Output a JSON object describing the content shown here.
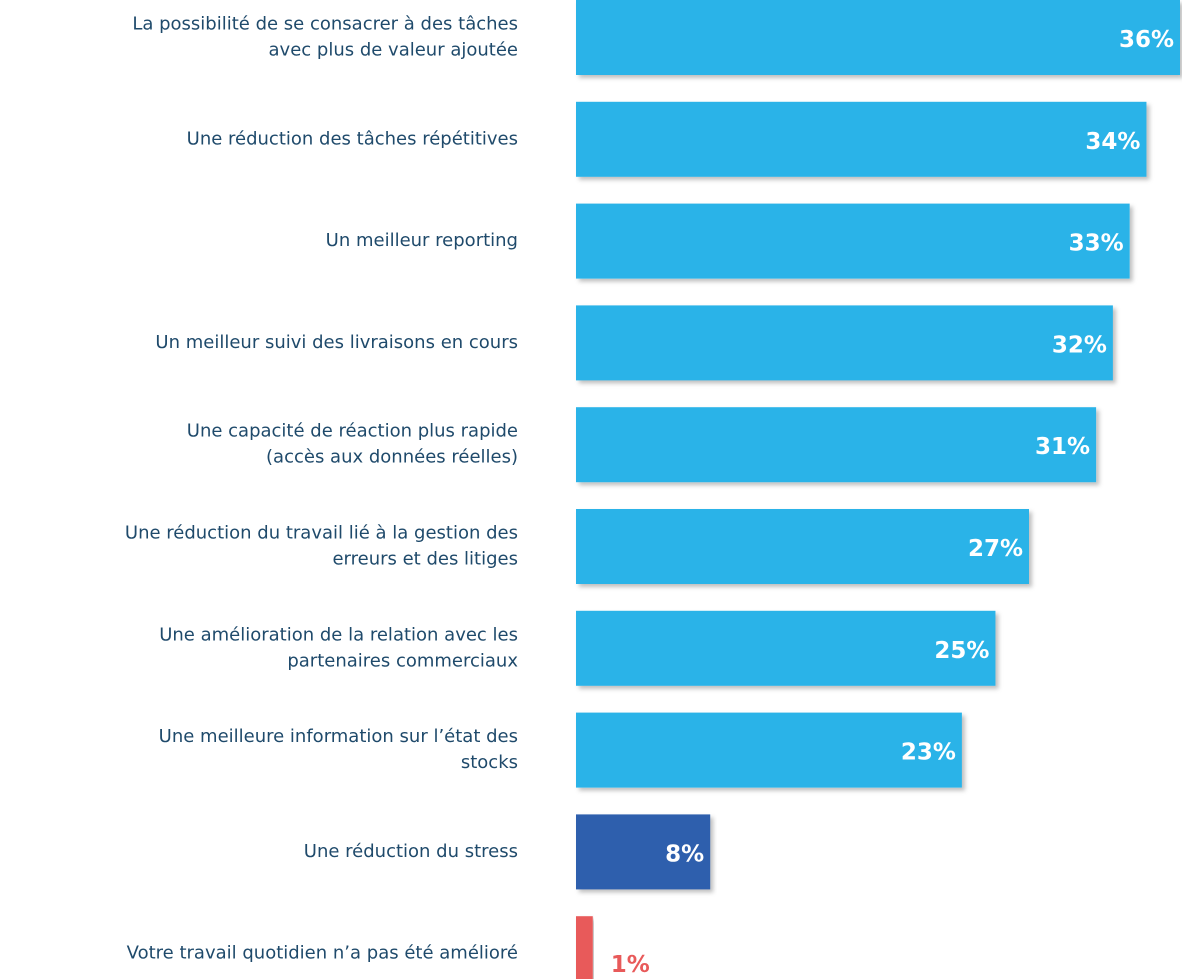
{
  "chart_data": {
    "type": "bar",
    "orientation": "horizontal",
    "categories": [
      [
        "La possibilité de se consacrer à des tâches",
        "avec plus de valeur ajoutée"
      ],
      [
        "Une réduction des tâches répétitives"
      ],
      [
        "Un meilleur reporting"
      ],
      [
        "Un meilleur suivi des livraisons en cours"
      ],
      [
        "Une capacité de réaction plus rapide",
        "(accès aux données réelles)"
      ],
      [
        "Une réduction du travail lié à la gestion des",
        "erreurs et des litiges"
      ],
      [
        "Une amélioration de la relation avec les",
        "partenaires commerciaux"
      ],
      [
        "Une meilleure information sur l’état des",
        "stocks"
      ],
      [
        "Une réduction du stress"
      ],
      [
        "Votre travail quotidien n’a pas été amélioré"
      ]
    ],
    "values": [
      36,
      34,
      33,
      32,
      31,
      27,
      25,
      23,
      8,
      1
    ],
    "value_labels": [
      "36%",
      "34%",
      "33%",
      "32%",
      "31%",
      "27%",
      "25%",
      "23%",
      "8%",
      "1%"
    ],
    "colors": [
      "#2bb3e8",
      "#2bb3e8",
      "#2bb3e8",
      "#2bb3e8",
      "#2bb3e8",
      "#2bb3e8",
      "#2bb3e8",
      "#2bb3e8",
      "#2f5fad",
      "#e85a5a"
    ]
  }
}
